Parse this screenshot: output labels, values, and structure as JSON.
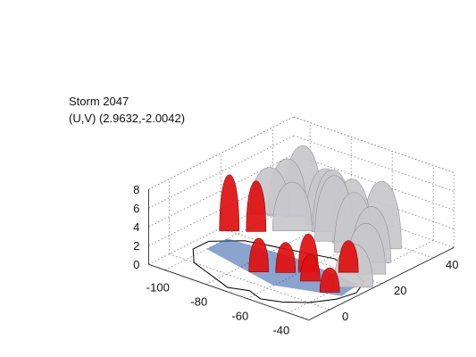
{
  "chart_data": {
    "type": "3d-surface",
    "title_lines": [
      "Storm 2047",
      "(U,V) (2.9632,-2.0042)"
    ],
    "x_axis": {
      "ticks": [
        -100,
        -80,
        -60,
        -40
      ],
      "range": [
        -108,
        -30
      ]
    },
    "y_axis": {
      "ticks": [
        0,
        20,
        40
      ],
      "range": [
        -8,
        48
      ]
    },
    "z_axis": {
      "ticks": [
        0,
        2,
        4,
        6,
        8
      ],
      "range": [
        0,
        8
      ]
    },
    "grid": true,
    "colors": {
      "envelope": "#c8c8cc",
      "core": "#e01010",
      "base": "#2a5aa8",
      "outline": "#000000"
    },
    "surfaces": {
      "gray_envelopes": [
        {
          "x": -102,
          "y": 34,
          "top": 5.0
        },
        {
          "x": -96,
          "y": 36,
          "top": 6.1
        },
        {
          "x": -91,
          "y": 38,
          "top": 7.6
        },
        {
          "x": -86,
          "y": 30,
          "top": 5.2
        },
        {
          "x": -80,
          "y": 38,
          "top": 6.0
        },
        {
          "x": -74,
          "y": 36,
          "top": 6.6
        },
        {
          "x": -68,
          "y": 32,
          "top": 7.0
        },
        {
          "x": -62,
          "y": 34,
          "top": 6.8
        },
        {
          "x": -56,
          "y": 30,
          "top": 6.4
        },
        {
          "x": -50,
          "y": 36,
          "top": 7.2
        },
        {
          "x": -45,
          "y": 28,
          "top": 6.0
        },
        {
          "x": -40,
          "y": 22,
          "top": 5.4
        },
        {
          "x": -36,
          "y": 14,
          "top": 4.6
        }
      ],
      "red_cores": [
        {
          "x": -104,
          "y": 20,
          "top": 6.0
        },
        {
          "x": -96,
          "y": 24,
          "top": 5.4
        },
        {
          "x": -72,
          "y": 6,
          "top": 3.6
        },
        {
          "x": -64,
          "y": 10,
          "top": 3.2
        },
        {
          "x": -58,
          "y": 14,
          "top": 4.0
        },
        {
          "x": -52,
          "y": 10,
          "top": 2.8
        },
        {
          "x": -46,
          "y": 20,
          "top": 3.4
        },
        {
          "x": -40,
          "y": 8,
          "top": 2.6
        }
      ]
    }
  }
}
